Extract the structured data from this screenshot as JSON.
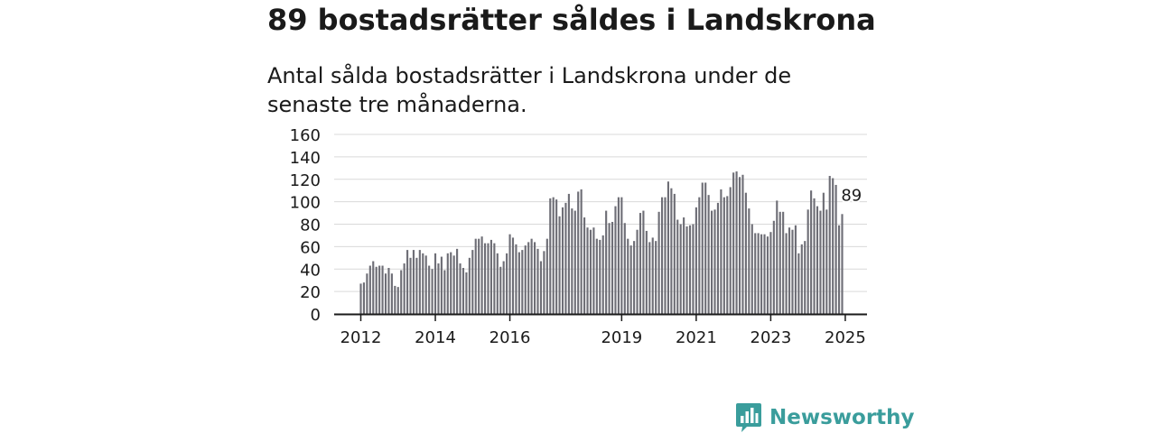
{
  "title": "89 bostadsrätter såldes i Landskrona",
  "subtitle": "Antal sålda bostadsrätter i Landskrona under de senaste tre månaderna.",
  "logo": {
    "name": "Newsworthy",
    "icon": "bar-chart-speech-bubble-icon"
  },
  "colors": {
    "bar": "#6e6e76",
    "highlight": "#2a9d9f",
    "grid": "#d9d9d9",
    "axis": "#1a1a1a",
    "brand": "#3a9d9c"
  },
  "chart_data": {
    "type": "bar",
    "title": "",
    "xlabel": "",
    "ylabel": "",
    "ylim": [
      0,
      160
    ],
    "yticks": [
      0,
      20,
      40,
      60,
      80,
      100,
      120,
      140,
      160
    ],
    "grid": true,
    "x_start": "2012-01",
    "x_end": "2025-03",
    "xticks": [
      {
        "label": "2012",
        "month": "2012-01"
      },
      {
        "label": "2014",
        "month": "2014-01"
      },
      {
        "label": "2016",
        "month": "2016-01"
      },
      {
        "label": "2019",
        "month": "2019-01"
      },
      {
        "label": "2021",
        "month": "2021-01"
      },
      {
        "label": "2023",
        "month": "2023-01"
      },
      {
        "label": "2025",
        "month": "2025-01"
      }
    ],
    "highlight": {
      "label": "89",
      "value": 89,
      "month": "2025-03"
    },
    "values": [
      27,
      28,
      36,
      43,
      47,
      42,
      43,
      43,
      36,
      41,
      36,
      25,
      24,
      39,
      45,
      57,
      50,
      57,
      50,
      57,
      54,
      52,
      43,
      40,
      54,
      45,
      51,
      39,
      54,
      55,
      52,
      58,
      45,
      41,
      37,
      50,
      57,
      67,
      67,
      69,
      63,
      63,
      66,
      63,
      54,
      42,
      47,
      54,
      71,
      68,
      62,
      55,
      57,
      61,
      64,
      67,
      64,
      58,
      47,
      56,
      67,
      103,
      104,
      102,
      87,
      95,
      99,
      107,
      94,
      92,
      109,
      111,
      86,
      77,
      75,
      77,
      67,
      66,
      70,
      92,
      81,
      82,
      96,
      104,
      104,
      81,
      67,
      61,
      65,
      75,
      90,
      92,
      74,
      64,
      68,
      65,
      91,
      104,
      104,
      118,
      112,
      107,
      84,
      80,
      86,
      78,
      79,
      80,
      95,
      104,
      117,
      117,
      106,
      92,
      93,
      99,
      111,
      104,
      105,
      113,
      126,
      127,
      122,
      124,
      108,
      94,
      80,
      72,
      72,
      71,
      71,
      69,
      73,
      83,
      101,
      91,
      91,
      72,
      77,
      75,
      79,
      54,
      62,
      65,
      93,
      110,
      103,
      96,
      92,
      108,
      93,
      123,
      121,
      115,
      79,
      89
    ]
  }
}
